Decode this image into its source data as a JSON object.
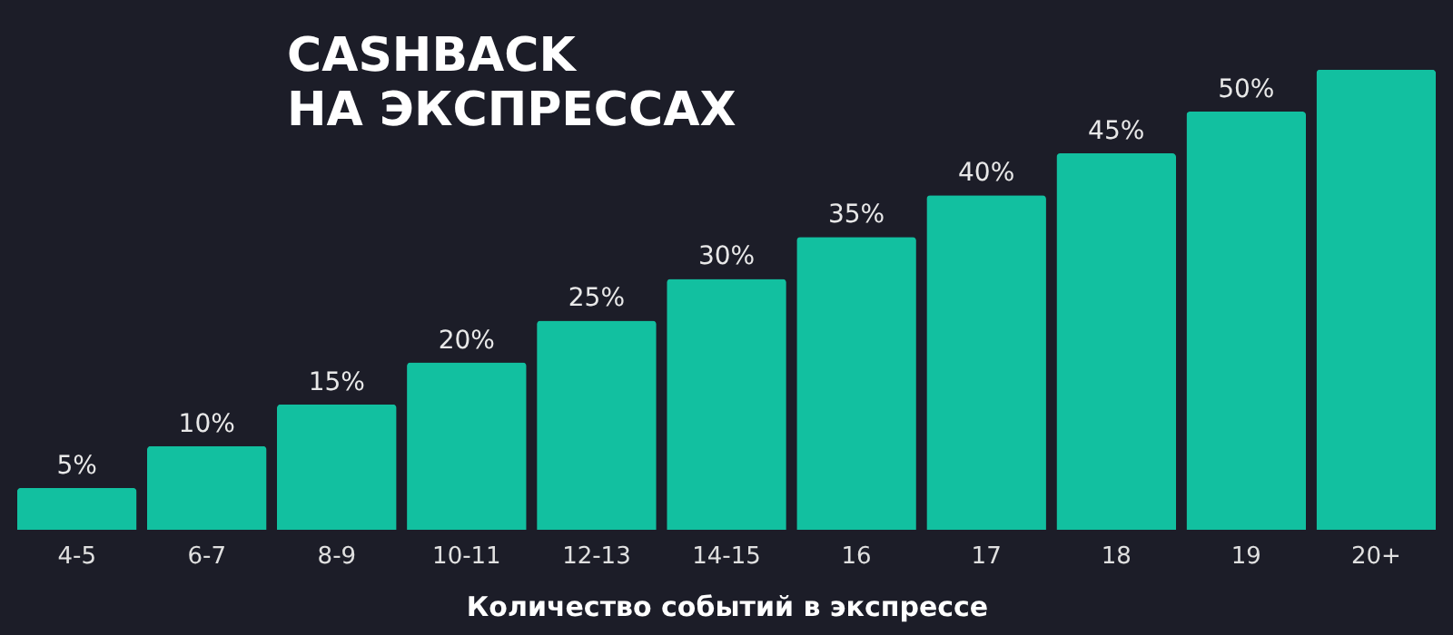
{
  "chart_data": {
    "type": "bar",
    "title": "CASHBACK\nНА ЭКСПРЕССАХ",
    "xlabel": "Количество событий в экспрессе",
    "categories": [
      "4-5",
      "6-7",
      "8-9",
      "10-11",
      "12-13",
      "14-15",
      "16",
      "17",
      "18",
      "19",
      "20+"
    ],
    "values": [
      5,
      10,
      15,
      20,
      25,
      30,
      35,
      40,
      45,
      50,
      55
    ],
    "value_labels": [
      "5%",
      "10%",
      "15%",
      "20%",
      "25%",
      "30%",
      "35%",
      "40%",
      "45%",
      "50%",
      null
    ],
    "color": "#12c0a0"
  }
}
